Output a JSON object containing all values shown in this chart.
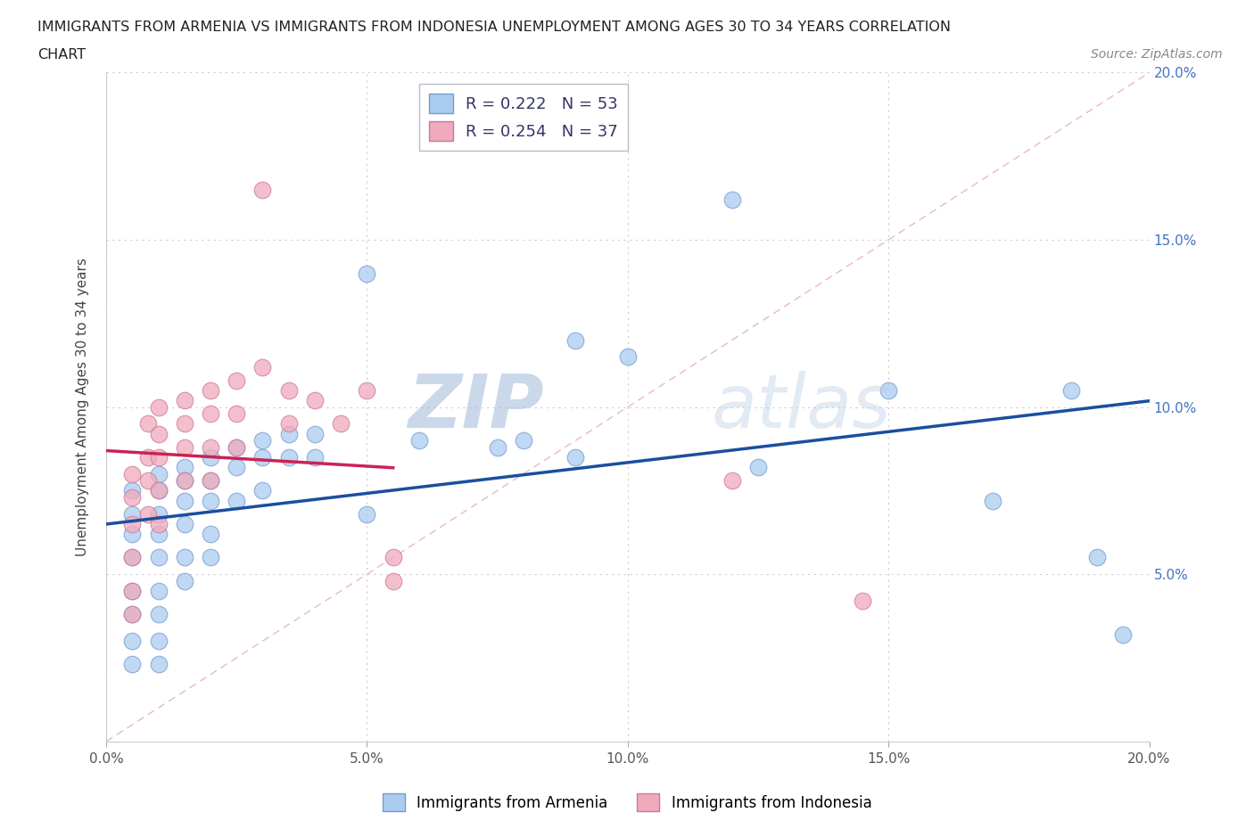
{
  "title_line1": "IMMIGRANTS FROM ARMENIA VS IMMIGRANTS FROM INDONESIA UNEMPLOYMENT AMONG AGES 30 TO 34 YEARS CORRELATION",
  "title_line2": "CHART",
  "source": "Source: ZipAtlas.com",
  "ylabel": "Unemployment Among Ages 30 to 34 years",
  "xlim": [
    0.0,
    0.2
  ],
  "ylim": [
    0.0,
    0.2
  ],
  "xticks": [
    0.0,
    0.05,
    0.1,
    0.15,
    0.2
  ],
  "yticks": [
    0.05,
    0.1,
    0.15,
    0.2
  ],
  "xtick_labels": [
    "0.0%",
    "5.0%",
    "10.0%",
    "15.0%",
    "20.0%"
  ],
  "ytick_labels": [
    "5.0%",
    "10.0%",
    "15.0%",
    "20.0%"
  ],
  "armenia_color": "#aaccf0",
  "indonesia_color": "#f0aabb",
  "armenia_edge": "#7799cc",
  "indonesia_edge": "#cc7799",
  "regression_armenia_color": "#1a4fa0",
  "regression_indonesia_color": "#cc2255",
  "diagonal_color": "#e8b8c8",
  "grid_color": "#cccccc",
  "legend_armenia_R": "0.222",
  "legend_armenia_N": "53",
  "legend_indonesia_R": "0.254",
  "legend_indonesia_N": "37",
  "watermark_zip": "ZIP",
  "watermark_atlas": "atlas",
  "armenia_x": [
    0.005,
    0.005,
    0.005,
    0.005,
    0.005,
    0.005,
    0.005,
    0.005,
    0.01,
    0.01,
    0.01,
    0.01,
    0.01,
    0.01,
    0.01,
    0.01,
    0.01,
    0.015,
    0.015,
    0.015,
    0.015,
    0.015,
    0.015,
    0.02,
    0.02,
    0.02,
    0.02,
    0.02,
    0.025,
    0.025,
    0.025,
    0.03,
    0.03,
    0.03,
    0.035,
    0.035,
    0.04,
    0.04,
    0.05,
    0.05,
    0.06,
    0.075,
    0.08,
    0.09,
    0.09,
    0.1,
    0.12,
    0.125,
    0.15,
    0.17,
    0.185,
    0.19,
    0.195
  ],
  "armenia_y": [
    0.075,
    0.068,
    0.062,
    0.055,
    0.045,
    0.038,
    0.03,
    0.023,
    0.08,
    0.075,
    0.068,
    0.062,
    0.055,
    0.045,
    0.038,
    0.03,
    0.023,
    0.082,
    0.078,
    0.072,
    0.065,
    0.055,
    0.048,
    0.085,
    0.078,
    0.072,
    0.062,
    0.055,
    0.088,
    0.082,
    0.072,
    0.09,
    0.085,
    0.075,
    0.092,
    0.085,
    0.092,
    0.085,
    0.14,
    0.068,
    0.09,
    0.088,
    0.09,
    0.12,
    0.085,
    0.115,
    0.162,
    0.082,
    0.105,
    0.072,
    0.105,
    0.055,
    0.032
  ],
  "indonesia_x": [
    0.005,
    0.005,
    0.005,
    0.005,
    0.005,
    0.005,
    0.008,
    0.008,
    0.008,
    0.008,
    0.01,
    0.01,
    0.01,
    0.01,
    0.01,
    0.015,
    0.015,
    0.015,
    0.015,
    0.02,
    0.02,
    0.02,
    0.02,
    0.025,
    0.025,
    0.025,
    0.03,
    0.03,
    0.035,
    0.035,
    0.04,
    0.045,
    0.05,
    0.055,
    0.055,
    0.12,
    0.145
  ],
  "indonesia_y": [
    0.08,
    0.073,
    0.065,
    0.055,
    0.045,
    0.038,
    0.095,
    0.085,
    0.078,
    0.068,
    0.1,
    0.092,
    0.085,
    0.075,
    0.065,
    0.102,
    0.095,
    0.088,
    0.078,
    0.105,
    0.098,
    0.088,
    0.078,
    0.108,
    0.098,
    0.088,
    0.165,
    0.112,
    0.105,
    0.095,
    0.102,
    0.095,
    0.105,
    0.055,
    0.048,
    0.078,
    0.042
  ]
}
